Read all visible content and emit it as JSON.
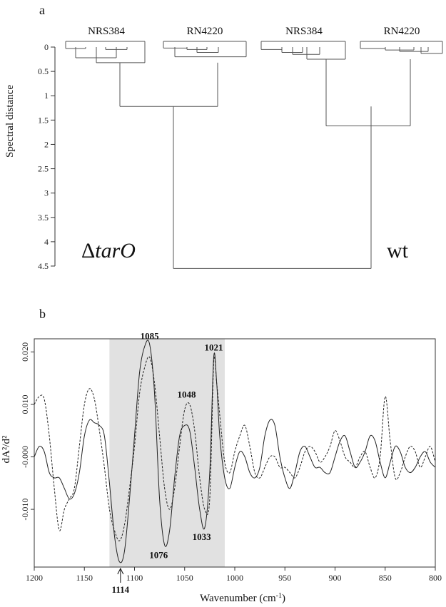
{
  "chart_data": [
    {
      "type": "dendrogram",
      "panel_label": "a",
      "ylabel": "Spectral distance",
      "ylim": [
        0,
        4.5
      ],
      "yticks": [
        "0",
        "0.5",
        "1",
        "1.5",
        "2",
        "2.5",
        "3",
        "3.5",
        "4",
        "4.5"
      ],
      "leaf_groups": [
        "NRS384",
        "RN4220",
        "NRS384",
        "RN4220"
      ],
      "class_labels": {
        "delta_prefix": "Δ",
        "delta_name": "tarO",
        "wt": "wt"
      },
      "merges": [
        {
          "name": "NRS384 (ΔtarO)",
          "height": 0.32
        },
        {
          "name": "RN4220 (ΔtarO)",
          "height": 0.2
        },
        {
          "name": "ΔtarO",
          "height": 1.22
        },
        {
          "name": "NRS384 (wt)",
          "height": 0.25
        },
        {
          "name": "RN4220 (wt)",
          "height": 0.13
        },
        {
          "name": "wt",
          "height": 1.62
        },
        {
          "name": "root",
          "height": 4.55
        }
      ]
    },
    {
      "type": "line",
      "panel_label": "b",
      "ylabel": "dA²/d²",
      "xlabel": "Wavenumber (cm",
      "xlabel_sup": "-1",
      "xlabel_end": ")",
      "xlim": [
        1200,
        800
      ],
      "ylim": [
        -0.021,
        0.0225
      ],
      "xticks": [
        1200,
        1150,
        1100,
        1050,
        1000,
        950,
        900,
        850,
        800
      ],
      "yticks": [
        {
          "v": 0.02,
          "label": "0.020"
        },
        {
          "v": 0.01,
          "label": "0.010"
        },
        {
          "v": 0.0,
          "label": "-0.000"
        },
        {
          "v": -0.01,
          "label": "-0.010"
        }
      ],
      "shaded_region": [
        1125,
        1010
      ],
      "peak_labels": [
        {
          "x": 1085,
          "y": 0.0215,
          "text": "1085"
        },
        {
          "x": 1021,
          "y": 0.0193,
          "text": "1021"
        },
        {
          "x": 1048,
          "y": 0.0103,
          "text": "1048"
        },
        {
          "x": 1033,
          "y": -0.0135,
          "text": "1033"
        },
        {
          "x": 1076,
          "y": -0.017,
          "text": "1076"
        }
      ],
      "arrow_marker": {
        "x": 1114,
        "y": -0.0205,
        "text": "1114"
      },
      "series": [
        {
          "style": "solid",
          "x": [
            1200,
            1195,
            1190,
            1185,
            1180,
            1175,
            1170,
            1165,
            1160,
            1155,
            1150,
            1145,
            1140,
            1135,
            1130,
            1125,
            1120,
            1115,
            1110,
            1105,
            1100,
            1095,
            1090,
            1085,
            1080,
            1075,
            1070,
            1065,
            1060,
            1055,
            1050,
            1045,
            1040,
            1035,
            1030,
            1025,
            1021,
            1018,
            1015,
            1010,
            1005,
            1000,
            995,
            990,
            985,
            980,
            975,
            970,
            965,
            960,
            955,
            950,
            945,
            940,
            935,
            930,
            925,
            920,
            915,
            910,
            905,
            900,
            895,
            890,
            885,
            880,
            875,
            870,
            865,
            860,
            855,
            850,
            845,
            840,
            835,
            830,
            825,
            820,
            815,
            810,
            805,
            800
          ],
          "y": [
            0.0,
            0.002,
            0.001,
            -0.003,
            -0.004,
            -0.004,
            -0.006,
            -0.008,
            -0.007,
            -0.003,
            0.004,
            0.007,
            0.0065,
            0.006,
            0.004,
            -0.005,
            -0.015,
            -0.02,
            -0.018,
            -0.008,
            0.004,
            0.016,
            0.021,
            0.0215,
            0.012,
            -0.008,
            -0.0168,
            -0.014,
            -0.004,
            0.004,
            0.006,
            0.005,
            -0.002,
            -0.01,
            -0.0135,
            -0.003,
            0.019,
            0.014,
            0.004,
            -0.004,
            -0.006,
            -0.002,
            0.001,
            0.0,
            -0.003,
            -0.004,
            -0.002,
            0.004,
            0.007,
            0.006,
            0.0,
            -0.004,
            -0.006,
            -0.003,
            0.001,
            0.002,
            0.0,
            -0.002,
            -0.002,
            -0.003,
            -0.003,
            0.0,
            0.003,
            0.004,
            0.001,
            -0.002,
            -0.001,
            0.001,
            0.004,
            0.003,
            -0.001,
            -0.004,
            -0.001,
            0.002,
            0.001,
            -0.002,
            -0.003,
            -0.002,
            0.0,
            0.001,
            -0.001,
            -0.002
          ]
        },
        {
          "style": "dashed",
          "x": [
            1200,
            1195,
            1190,
            1185,
            1180,
            1175,
            1170,
            1165,
            1160,
            1155,
            1150,
            1145,
            1140,
            1135,
            1130,
            1125,
            1120,
            1115,
            1110,
            1105,
            1100,
            1095,
            1090,
            1085,
            1080,
            1075,
            1070,
            1065,
            1060,
            1055,
            1050,
            1045,
            1040,
            1035,
            1030,
            1025,
            1021,
            1018,
            1015,
            1010,
            1005,
            1000,
            995,
            990,
            985,
            980,
            975,
            970,
            965,
            960,
            955,
            950,
            945,
            940,
            935,
            930,
            925,
            920,
            915,
            910,
            905,
            900,
            895,
            890,
            885,
            880,
            875,
            870,
            865,
            860,
            855,
            850,
            845,
            840,
            835,
            830,
            825,
            820,
            815,
            810,
            805,
            800
          ],
          "y": [
            0.01,
            0.0115,
            0.011,
            0.004,
            -0.006,
            -0.014,
            -0.01,
            -0.008,
            -0.006,
            0.002,
            0.01,
            0.013,
            0.011,
            0.005,
            -0.002,
            -0.01,
            -0.014,
            -0.016,
            -0.013,
            -0.006,
            0.002,
            0.012,
            0.017,
            0.019,
            0.014,
            0.004,
            -0.006,
            -0.01,
            -0.006,
            0.002,
            0.009,
            0.01,
            0.005,
            -0.004,
            -0.01,
            -0.008,
            0.018,
            0.014,
            0.008,
            -0.001,
            -0.003,
            0.001,
            0.004,
            0.006,
            0.002,
            -0.003,
            -0.004,
            -0.002,
            0.0,
            0.0,
            -0.002,
            -0.002,
            -0.003,
            -0.004,
            -0.002,
            0.001,
            0.002,
            0.001,
            -0.001,
            0.0,
            0.002,
            0.005,
            0.003,
            0.0,
            -0.001,
            -0.002,
            0.0,
            0.001,
            -0.002,
            -0.004,
            0.0,
            0.0115,
            0.003,
            -0.004,
            -0.003,
            0.0,
            0.002,
            0.001,
            -0.002,
            0.0,
            0.002,
            -0.001
          ]
        }
      ]
    }
  ]
}
